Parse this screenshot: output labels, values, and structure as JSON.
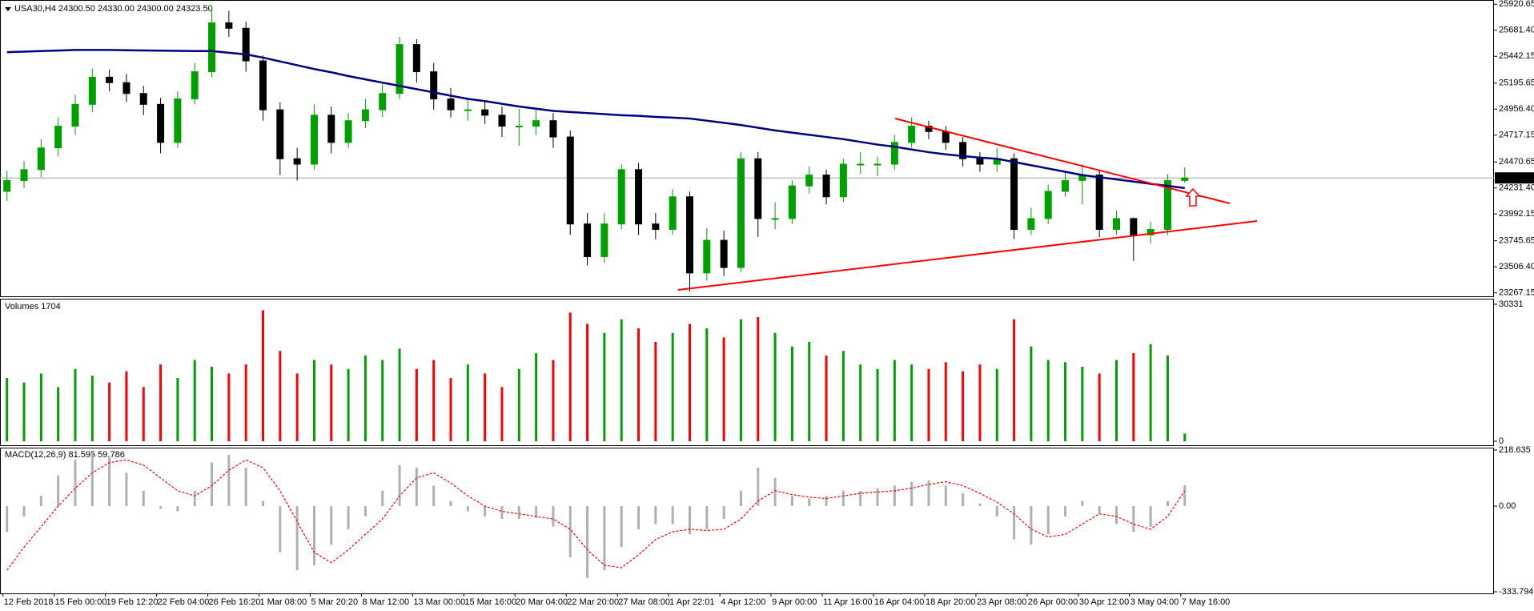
{
  "chart_data": [
    {
      "type": "candlestick",
      "title": "USA30,H4  24300.50 24330.00 24300.00 24323.50",
      "categories": [
        "12 Feb 2018",
        null,
        null,
        "15 Feb 00:00",
        null,
        null,
        "19 Feb 12:20",
        null,
        null,
        "22 Feb 04:00",
        null,
        null,
        "26 Feb 16:20",
        null,
        null,
        "1 Mar 08:00",
        null,
        null,
        "5 Mar 20:20",
        null,
        null,
        "8 Mar 12:00",
        null,
        null,
        "13 Mar 00:00",
        null,
        null,
        "15 Mar 16:00",
        null,
        null,
        "20 Mar 04:00",
        null,
        null,
        "22 Mar 20:00",
        null,
        null,
        "27 Mar 08:00",
        null,
        null,
        "1 Apr 22:01",
        null,
        null,
        "4 Apr 12:00",
        null,
        null,
        "9 Apr 00:00",
        null,
        null,
        "11 Apr 16:00",
        null,
        null,
        "16 Apr 04:00",
        null,
        null,
        "18 Apr 20:00",
        null,
        null,
        "23 Apr 08:00",
        null,
        null,
        "26 Apr 00:00",
        null,
        null,
        "30 Apr 12:00",
        null,
        null,
        "3 May 04:00",
        null,
        null,
        "7 May 16:00"
      ],
      "open": [
        24200,
        24300,
        24400,
        24600,
        24800,
        25000,
        25250,
        25200,
        25100,
        25000,
        24650,
        25050,
        25300,
        25750,
        25700,
        25400,
        24950,
        24500,
        24450,
        24900,
        24650,
        24850,
        24950,
        25100,
        25550,
        25300,
        25050,
        24950,
        24950,
        24900,
        24800,
        24800,
        24850,
        24700,
        23900,
        23600,
        23900,
        24400,
        23900,
        23850,
        24150,
        23450,
        23750,
        23500,
        24500,
        23950,
        23950,
        24250,
        24350,
        24150,
        24450,
        24450,
        24450,
        24650,
        24800,
        24750,
        24650,
        24500,
        24450,
        24500,
        23850,
        23950,
        24200,
        24300,
        24350,
        23850,
        23950,
        23800,
        23850,
        24300
      ],
      "high": [
        24390,
        24480,
        24680,
        24880,
        25090,
        25330,
        25320,
        25280,
        25170,
        25060,
        25120,
        25380,
        25900,
        25860,
        25760,
        25450,
        25020,
        24600,
        25000,
        24980,
        24920,
        25050,
        25200,
        25620,
        25600,
        25380,
        25150,
        25050,
        25020,
        24980,
        24960,
        24950,
        24920,
        24760,
        24000,
        24000,
        24450,
        24460,
        24000,
        24220,
        24200,
        23860,
        23840,
        24560,
        24560,
        24100,
        24300,
        24430,
        24400,
        24500,
        24560,
        24520,
        24720,
        24880,
        24850,
        24800,
        24700,
        24560,
        24600,
        24550,
        24050,
        24260,
        24380,
        24450,
        24400,
        24020,
        23960,
        23920,
        24360,
        24420
      ],
      "low": [
        24110,
        24230,
        24330,
        24520,
        24720,
        24930,
        25120,
        25020,
        24900,
        24550,
        24600,
        25000,
        25250,
        25620,
        25300,
        24850,
        24350,
        24300,
        24400,
        24550,
        24600,
        24780,
        24880,
        25050,
        25200,
        24950,
        24880,
        24850,
        24820,
        24700,
        24620,
        24720,
        24600,
        23800,
        23520,
        23540,
        23850,
        23800,
        23760,
        23800,
        23280,
        23380,
        23420,
        23460,
        23780,
        23850,
        23900,
        24180,
        24080,
        24100,
        24360,
        24340,
        24400,
        24600,
        24680,
        24580,
        24430,
        24380,
        24380,
        23760,
        23800,
        23900,
        24150,
        24080,
        23780,
        23800,
        23560,
        23720,
        23800,
        24280
      ],
      "close": [
        24300,
        24400,
        24600,
        24800,
        25000,
        25250,
        25200,
        25100,
        25000,
        24650,
        25050,
        25300,
        25750,
        25700,
        25400,
        24950,
        24500,
        24450,
        24900,
        24650,
        24850,
        24950,
        25100,
        25550,
        25300,
        25050,
        24950,
        24950,
        24900,
        24800,
        24800,
        24850,
        24700,
        23900,
        23600,
        23900,
        24400,
        23900,
        23850,
        24150,
        23450,
        23750,
        23500,
        24500,
        23950,
        23950,
        24250,
        24350,
        24150,
        24450,
        24450,
        24450,
        24650,
        24800,
        24750,
        24650,
        24500,
        24450,
        24500,
        23850,
        23950,
        24200,
        24300,
        24350,
        23850,
        23950,
        23800,
        23850,
        24300,
        24323.5
      ],
      "up_color": "#00a000",
      "down_color": "#000000",
      "series": [
        {
          "color": "#00007f",
          "values": [
            25480,
            25485,
            25490,
            25495,
            25500,
            25500,
            25500,
            25498,
            25496,
            25494,
            25492,
            25490,
            25490,
            25475,
            25460,
            25430,
            25395,
            25360,
            25325,
            25295,
            25260,
            25230,
            25200,
            25170,
            25140,
            25110,
            25080,
            25050,
            25030,
            25005,
            24980,
            24960,
            24940,
            24930,
            24920,
            24910,
            24900,
            24895,
            24885,
            24878,
            24870,
            24850,
            24830,
            24810,
            24785,
            24760,
            24740,
            24720,
            24700,
            24680,
            24655,
            24630,
            24610,
            24585,
            24560,
            24540,
            24525,
            24510,
            24500,
            24470,
            24440,
            24410,
            24380,
            24350,
            24330,
            24310,
            24290,
            24270,
            24250,
            24230
          ]
        }
      ],
      "ylim": [
        23235,
        25945
      ],
      "yticks": [
        25920.65,
        {
          "value": 25681.4,
          "label": "25681.40"
        },
        25442.15,
        25195.65,
        {
          "value": 24956.4,
          "label": "24956.40"
        },
        24717.15,
        24470.65,
        {
          "value": 24231.4,
          "label": "24231.40"
        },
        23992.15,
        23745.65,
        {
          "value": 23506.4,
          "label": "23506.40"
        },
        23267.15
      ],
      "last_price": {
        "value": 24323.5,
        "label": "24323.50"
      }
    },
    {
      "type": "bar",
      "title": "Volumes 1704",
      "values": [
        14000,
        13000,
        15000,
        12000,
        16000,
        14500,
        13000,
        15500,
        12000,
        17000,
        14000,
        18000,
        16500,
        15000,
        17000,
        29000,
        20000,
        15000,
        18000,
        17000,
        16000,
        19000,
        18000,
        20500,
        16000,
        18000,
        14000,
        17000,
        15000,
        12000,
        16000,
        19500,
        18000,
        28500,
        26000,
        24000,
        27000,
        25000,
        22000,
        24000,
        26000,
        25000,
        23000,
        27000,
        27500,
        24000,
        21000,
        22000,
        19000,
        20000,
        17000,
        16000,
        18000,
        17000,
        16000,
        17500,
        15500,
        17000,
        16000,
        27000,
        21000,
        18000,
        17500,
        16500,
        15000,
        18000,
        19500,
        21500,
        19000,
        1704
      ],
      "up_color": "#00a000",
      "down_color": "#ff0000",
      "ylim": [
        0,
        30331
      ],
      "yticks": [
        0,
        30331
      ]
    },
    {
      "type": "macd",
      "title": "MACD(12,26,9) 81.595 59.786",
      "histogram": {
        "color": "#b0b0b0",
        "values": [
          -100,
          -40,
          40,
          120,
          180,
          210,
          190,
          130,
          60,
          -10,
          -20,
          60,
          170,
          200,
          150,
          20,
          -180,
          -250,
          -230,
          -150,
          -90,
          -40,
          60,
          160,
          150,
          80,
          20,
          -20,
          -40,
          -50,
          -50,
          -45,
          -80,
          -200,
          -280,
          -250,
          -160,
          -90,
          -70,
          -70,
          -110,
          -90,
          -50,
          60,
          150,
          110,
          40,
          30,
          40,
          60,
          60,
          70,
          80,
          95,
          100,
          80,
          50,
          10,
          -40,
          -130,
          -150,
          -110,
          -40,
          20,
          -30,
          -70,
          -100,
          -80,
          20,
          81.595
        ]
      },
      "signal": {
        "color": "#ff0000",
        "values": [
          -250,
          -160,
          -80,
          0,
          70,
          130,
          170,
          180,
          160,
          110,
          60,
          40,
          80,
          140,
          180,
          150,
          60,
          -60,
          -180,
          -220,
          -170,
          -110,
          -50,
          40,
          110,
          130,
          90,
          40,
          0,
          -20,
          -30,
          -40,
          -50,
          -90,
          -170,
          -230,
          -240,
          -190,
          -130,
          -100,
          -90,
          -95,
          -90,
          -50,
          20,
          60,
          45,
          35,
          30,
          40,
          50,
          55,
          60,
          70,
          85,
          95,
          80,
          50,
          15,
          -30,
          -90,
          -120,
          -110,
          -70,
          -30,
          -40,
          -70,
          -90,
          -40,
          59.786
        ]
      },
      "ylim": [
        -340,
        225
      ],
      "yticks": [
        218.635,
        {
          "value": 0,
          "label": "0.00"
        },
        -333.794
      ]
    }
  ]
}
